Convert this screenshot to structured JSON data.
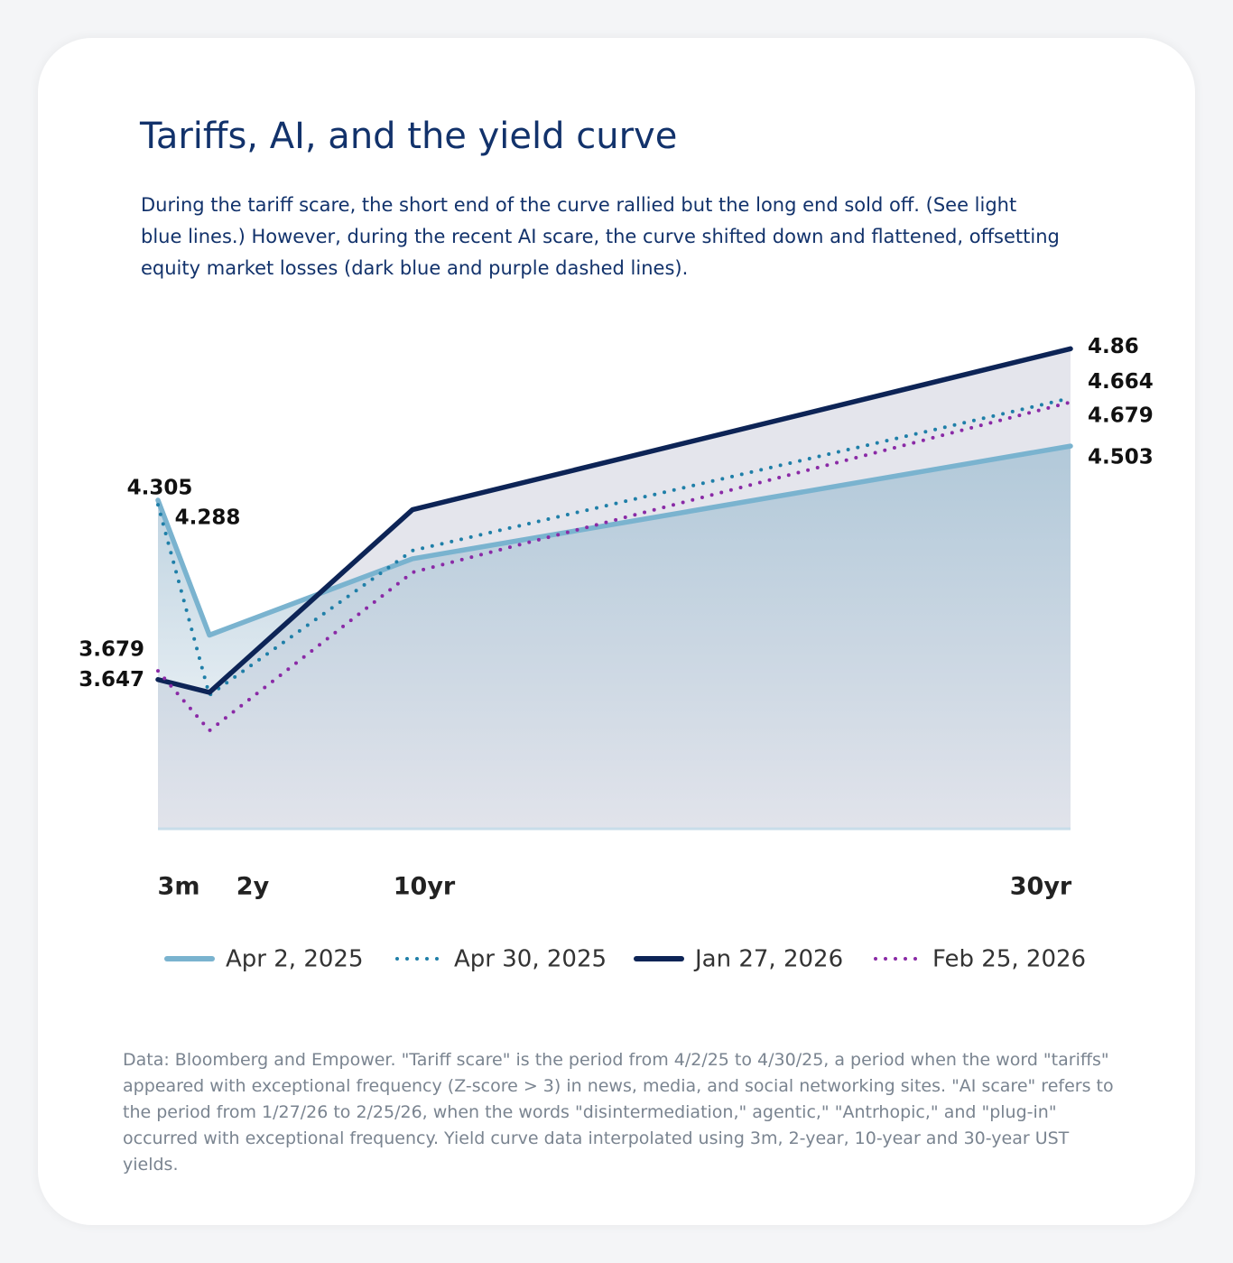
{
  "chart_data": {
    "type": "line",
    "title": "Tariffs, AI, and the yield curve",
    "subtitle": "During the tariff scare, the short end of the curve rallied but the long end sold off. (See light blue lines.) However, during the recent AI scare, the curve shifted down and flattened, offsetting equity market losses (dark blue and purple dashed lines).",
    "categories": [
      "3m",
      "2y",
      "10yr",
      "30yr"
    ],
    "series": [
      {
        "name": "Apr 2, 2025",
        "color": "#7ab3cf",
        "style": "solid",
        "values": [
          4.305,
          3.81,
          4.09,
          4.503
        ]
      },
      {
        "name": "Apr 30, 2025",
        "color": "#1f7fa8",
        "style": "dotted",
        "values": [
          4.288,
          3.59,
          4.12,
          4.679
        ]
      },
      {
        "name": "Jan 27, 2026",
        "color": "#0d2456",
        "style": "solid",
        "values": [
          3.647,
          3.6,
          4.27,
          4.86
        ]
      },
      {
        "name": "Feb 25, 2026",
        "color": "#8a2aa6",
        "style": "dotted",
        "values": [
          3.679,
          3.46,
          4.04,
          4.664
        ]
      }
    ],
    "ylim": [
      3.1,
      5.0
    ],
    "note": "Data: Bloomberg and Empower. \"Tariff scare\" is the period from 4/2/25 to 4/30/25, a period when the word \"tariffs\" appeared with exceptional frequency (Z-score > 3) in news, media, and social networking sites. \"AI scare\" refers to the period from 1/27/26 to 2/25/26, when the words \"disintermediation,\" agentic,\" \"Antrhopic,\" and \"plug-in\" occurred with exceptional frequency. Yield curve data interpolated using 3m, 2-year, 10-year and 30-year UST yields."
  }
}
